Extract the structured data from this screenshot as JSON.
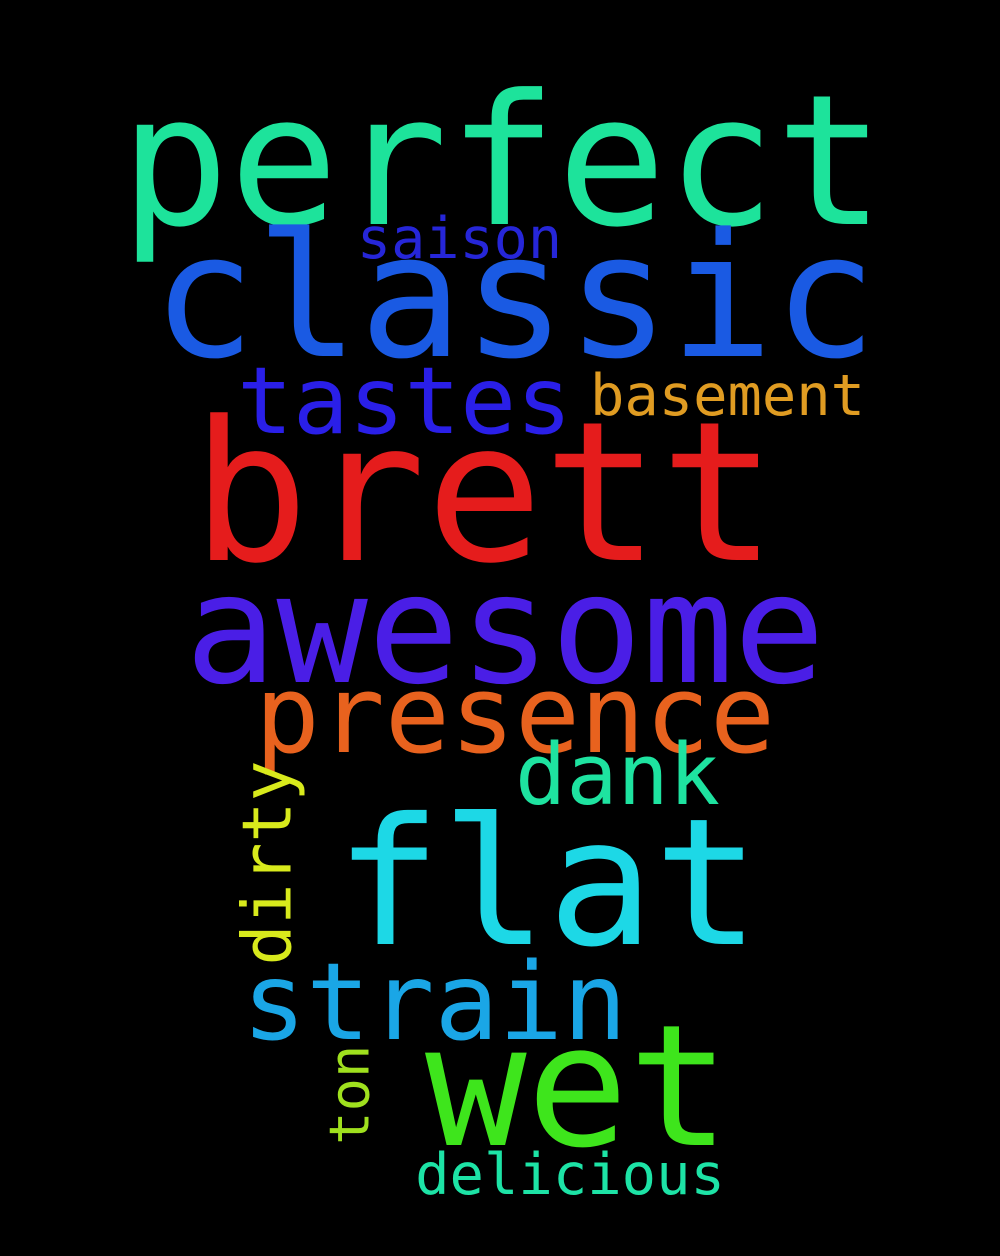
{
  "words": [
    {
      "key": "perfect",
      "text": "perfect",
      "color": "#1de39b",
      "orientation": "horizontal"
    },
    {
      "key": "saison",
      "text": "saison",
      "color": "#2626d8",
      "orientation": "horizontal"
    },
    {
      "key": "classic",
      "text": "classic",
      "color": "#1a5ae3",
      "orientation": "horizontal"
    },
    {
      "key": "tastes",
      "text": "tastes",
      "color": "#2a1fe8",
      "orientation": "horizontal"
    },
    {
      "key": "basement",
      "text": "basement",
      "color": "#e09c22",
      "orientation": "horizontal"
    },
    {
      "key": "brett",
      "text": "brett",
      "color": "#e51c1c",
      "orientation": "horizontal"
    },
    {
      "key": "awesome",
      "text": "awesome",
      "color": "#4a1ee6",
      "orientation": "horizontal"
    },
    {
      "key": "presence",
      "text": "presence",
      "color": "#e8621e",
      "orientation": "horizontal"
    },
    {
      "key": "dank",
      "text": "dank",
      "color": "#1ee3a0",
      "orientation": "horizontal"
    },
    {
      "key": "dirty",
      "text": "dirty",
      "color": "#d8ea1c",
      "orientation": "vertical"
    },
    {
      "key": "flat",
      "text": "flat",
      "color": "#1dd8e6",
      "orientation": "horizontal"
    },
    {
      "key": "strain",
      "text": "strain",
      "color": "#1aa6e6",
      "orientation": "horizontal"
    },
    {
      "key": "ton",
      "text": "ton",
      "color": "#9fe01e",
      "orientation": "vertical"
    },
    {
      "key": "wet",
      "text": "wet",
      "color": "#3ee51c",
      "orientation": "horizontal"
    },
    {
      "key": "delicious",
      "text": "delicious",
      "color": "#1de3a6",
      "orientation": "horizontal"
    }
  ]
}
